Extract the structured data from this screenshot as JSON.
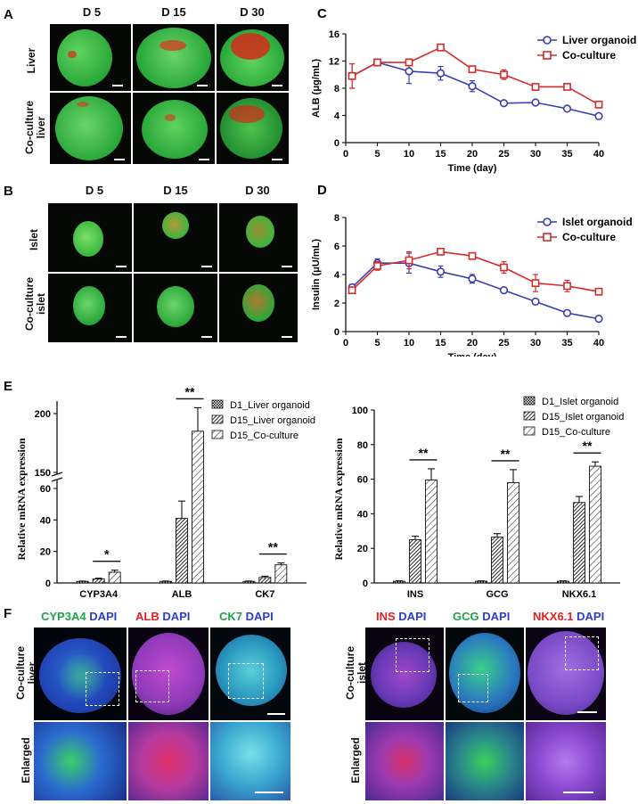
{
  "panels": {
    "A": {
      "label": "A",
      "columns": [
        "D 5",
        "D 15",
        "D 30"
      ],
      "rows": [
        "Liver",
        "Co-culture\nliver"
      ]
    },
    "B": {
      "label": "B",
      "columns": [
        "D 5",
        "D 15",
        "D 30"
      ],
      "rows": [
        "Islet",
        "Co-culture\nislet"
      ]
    },
    "F": {
      "label": "F",
      "left_titles": [
        {
          "marker": "CYP3A4",
          "dapi": "DAPI",
          "marker_color": "#1fa34a"
        },
        {
          "marker": "ALB",
          "dapi": "DAPI",
          "marker_color": "#e02020"
        },
        {
          "marker": "CK7",
          "dapi": "DAPI",
          "marker_color": "#1fa34a"
        }
      ],
      "right_titles": [
        {
          "marker": "INS",
          "dapi": "DAPI",
          "marker_color": "#e02020"
        },
        {
          "marker": "GCG",
          "dapi": "DAPI",
          "marker_color": "#1fa34a"
        },
        {
          "marker": "NKX6.1",
          "dapi": "DAPI",
          "marker_color": "#e02020"
        }
      ],
      "left_rows": [
        "Co-culture\nliver",
        "Enlarged"
      ],
      "right_rows": [
        "Co-culture\nislet",
        "Enlarged"
      ],
      "dapi_color": "#2a3fd0"
    }
  },
  "chart_data": [
    {
      "id": "C",
      "panel_label": "C",
      "type": "line",
      "x": [
        1,
        5,
        10,
        15,
        20,
        25,
        30,
        35,
        40
      ],
      "series": [
        {
          "name": "Liver organoid",
          "color": "#3a3fb0",
          "values": [
            9.8,
            11.8,
            10.5,
            10.2,
            8.3,
            5.8,
            5.9,
            5.0,
            3.9
          ],
          "errors": [
            1.8,
            0.3,
            1.8,
            1.0,
            0.8,
            0.2,
            0.3,
            0.2,
            0.3
          ]
        },
        {
          "name": "Co-culture",
          "color": "#d62c2c",
          "values": [
            9.8,
            11.8,
            11.8,
            14.0,
            10.8,
            10.0,
            8.2,
            8.2,
            5.6
          ],
          "errors": [
            1.8,
            0.3,
            0.3,
            0.3,
            0.3,
            0.7,
            0.3,
            0.3,
            0.4
          ]
        }
      ],
      "xlabel": "Time (day)",
      "ylabel": "ALB (μg/mL)",
      "xlim": [
        0,
        40
      ],
      "ylim": [
        0,
        16
      ],
      "xticks": [
        "0",
        "5",
        "10",
        "15",
        "20",
        "25",
        "30",
        "35",
        "40"
      ],
      "yticks": [
        "0",
        "4",
        "8",
        "12",
        "16"
      ],
      "legend": "top-right"
    },
    {
      "id": "D",
      "panel_label": "D",
      "type": "line",
      "x": [
        1,
        5,
        10,
        15,
        20,
        25,
        30,
        35,
        40
      ],
      "series": [
        {
          "name": "Islet organoid",
          "color": "#3a3fb0",
          "values": [
            3.1,
            4.8,
            4.8,
            4.2,
            3.7,
            2.9,
            2.1,
            1.3,
            0.9
          ],
          "errors": [
            0.2,
            0.3,
            0.7,
            0.4,
            0.3,
            0.1,
            0.1,
            0.1,
            0.1
          ]
        },
        {
          "name": "Co-culture",
          "color": "#d62c2c",
          "values": [
            2.9,
            4.6,
            5.0,
            5.6,
            5.3,
            4.5,
            3.4,
            3.2,
            2.8
          ],
          "errors": [
            0.2,
            0.3,
            0.6,
            0.2,
            0.2,
            0.4,
            0.6,
            0.4,
            0.2
          ]
        }
      ],
      "xlabel": "Time (day)",
      "ylabel": "Insulin (μU/mL)",
      "xlim": [
        0,
        40
      ],
      "ylim": [
        0,
        8
      ],
      "xticks": [
        "0",
        "5",
        "10",
        "15",
        "20",
        "25",
        "30",
        "35",
        "40"
      ],
      "yticks": [
        "0",
        "2",
        "4",
        "6",
        "8"
      ],
      "legend": "top-right"
    },
    {
      "id": "E1",
      "panel_label": "E",
      "type": "bar",
      "categories": [
        "CYP3A4",
        "ALB",
        "CK7"
      ],
      "series": [
        {
          "name": "D1_Liver organoid",
          "values": [
            1,
            1,
            1
          ],
          "errors": [
            0.2,
            0.2,
            0.2
          ]
        },
        {
          "name": "D15_Liver organoid",
          "values": [
            2.5,
            41,
            3.5
          ],
          "errors": [
            0.5,
            11,
            0.8
          ]
        },
        {
          "name": "D15_Co-culture",
          "values": [
            6.8,
            185,
            11.5
          ],
          "errors": [
            1.3,
            20,
            1.2
          ]
        }
      ],
      "significance": [
        {
          "category": "CYP3A4",
          "label": "*"
        },
        {
          "category": "ALB",
          "label": "**"
        },
        {
          "category": "CK7",
          "label": "**"
        }
      ],
      "ylabel": "Relative mRNA expression",
      "yticks_low": [
        "0",
        "20",
        "40",
        "60"
      ],
      "yticks_high": [
        "150",
        "200"
      ],
      "axis_break": [
        60,
        120
      ],
      "ylim": [
        0,
        200
      ],
      "legend": "top-right"
    },
    {
      "id": "E2",
      "type": "bar",
      "categories": [
        "INS",
        "GCG",
        "NKX6.1"
      ],
      "series": [
        {
          "name": "D1_Islet organoid",
          "values": [
            1,
            1,
            1
          ],
          "errors": [
            0.2,
            0.2,
            0.2
          ]
        },
        {
          "name": "D15_Islet organoid",
          "values": [
            25,
            26.5,
            46.5
          ],
          "errors": [
            2.0,
            2.0,
            3.5
          ]
        },
        {
          "name": "D15_Co-culture",
          "values": [
            59.5,
            58,
            67.5
          ],
          "errors": [
            6.5,
            7.5,
            2.5
          ]
        }
      ],
      "significance": [
        {
          "category": "INS",
          "label": "**"
        },
        {
          "category": "GCG",
          "label": "**"
        },
        {
          "category": "NKX6.1",
          "label": "**"
        }
      ],
      "ylabel": "Relative mRNA expression",
      "yticks": [
        "0",
        "20",
        "40",
        "60",
        "80",
        "100"
      ],
      "ylim": [
        0,
        100
      ],
      "legend": "top-right"
    }
  ]
}
